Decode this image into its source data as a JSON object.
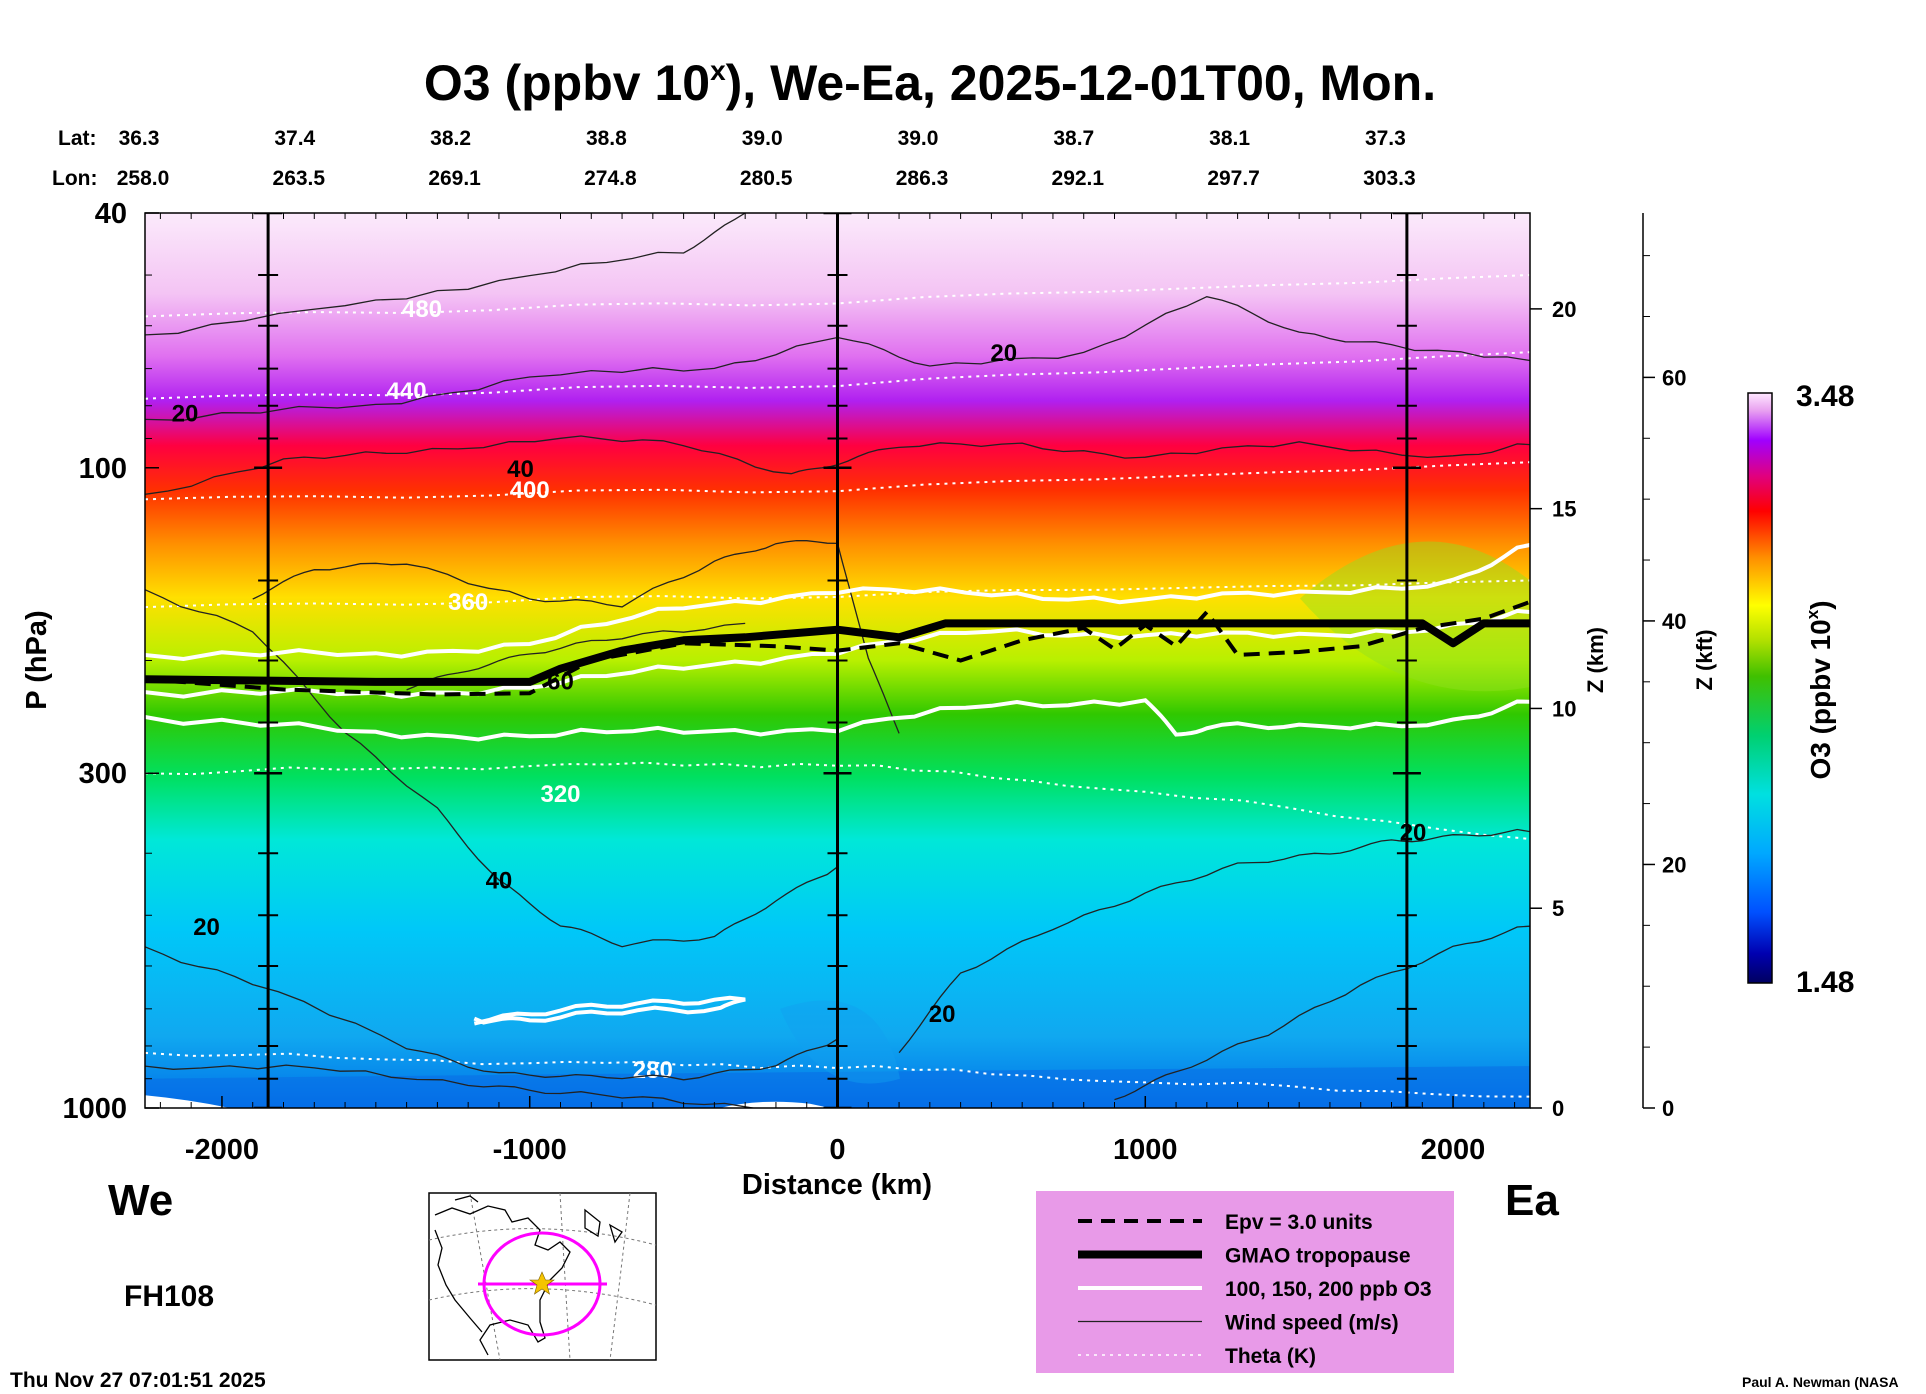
{
  "chart_data": {
    "type": "heatmap",
    "title": "O3 (ppbv 10",
    "title_sup": "x",
    "title_rest": "), We-Ea, 2025-12-01T00, Mon.",
    "xlabel": "Distance (km)",
    "ylabel": "P (hPa)",
    "xlim": [
      -2250,
      2250
    ],
    "ylim": [
      1000,
      40
    ],
    "y_scale": "log",
    "x_ticks": [
      -2000,
      -1000,
      0,
      1000,
      2000
    ],
    "y_ticks": [
      40,
      100,
      300,
      1000
    ],
    "z_km_label": "Z (km)",
    "z_km_ticks": [
      0,
      5,
      10,
      15,
      20
    ],
    "z_kft_label": "Z (kft)",
    "z_kft_ticks": [
      0,
      20,
      40,
      60
    ],
    "cross_section": {
      "lat_label": "Lat:",
      "lon_label": "Lon:",
      "lat": [
        "36.3",
        "37.4",
        "38.2",
        "38.8",
        "39.0",
        "39.0",
        "38.7",
        "38.1",
        "37.3"
      ],
      "lon": [
        "258.0",
        "263.5",
        "269.1",
        "274.8",
        "280.5",
        "286.3",
        "292.1",
        "297.7",
        "303.3"
      ]
    },
    "vertical_markers_km": [
      -1850,
      0,
      1850
    ],
    "colorbar": {
      "label": "O3 (ppbv 10",
      "label_sup": "x",
      "label_end": ")",
      "min": 1.48,
      "max": 3.48,
      "min_label": "1.48",
      "max_label": "3.48"
    },
    "tropopause_pressure_hPa": {
      "x": [
        -2250,
        -1500,
        -1000,
        -900,
        -700,
        -500,
        -300,
        0,
        200,
        350,
        600,
        1000,
        1500,
        1900,
        2000,
        2100,
        2250
      ],
      "p": [
        214,
        216,
        216,
        206,
        193,
        186,
        184,
        179,
        184,
        175,
        175,
        175,
        175,
        175,
        188,
        175,
        175
      ]
    },
    "epv_pressure_hPa": {
      "x": [
        -2250,
        -1800,
        -1300,
        -1000,
        -800,
        -500,
        -200,
        0,
        200,
        400,
        600,
        800,
        900,
        1000,
        1100,
        1200,
        1300,
        1500,
        1700,
        1900,
        2100,
        2250
      ],
      "p": [
        214,
        222,
        226,
        225,
        200,
        188,
        190,
        193,
        188,
        200,
        186,
        178,
        192,
        176,
        190,
        168,
        196,
        194,
        190,
        178,
        172,
        162
      ]
    },
    "ozone_contours_ppb": [
      {
        "level": 200,
        "x": [
          -2250,
          -1500,
          -1000,
          -500,
          0,
          500,
          1000,
          1500,
          2000,
          2250
        ],
        "p": [
          196,
          196,
          188,
          165,
          155,
          158,
          160,
          158,
          150,
          132
        ]
      },
      {
        "level": 150,
        "x": [
          -2250,
          -1500,
          -1000,
          -500,
          0,
          500,
          1000,
          1500,
          2000,
          2250
        ],
        "p": [
          224,
          226,
          220,
          205,
          193,
          180,
          182,
          184,
          176,
          168
        ]
      },
      {
        "level": 100,
        "x": [
          -2250,
          -1500,
          -1000,
          -500,
          0,
          500,
          1000,
          1100,
          1200,
          1500,
          2000,
          2250
        ],
        "p": [
          245,
          260,
          262,
          258,
          255,
          235,
          230,
          262,
          255,
          255,
          248,
          232
        ]
      },
      {
        "level": 100,
        "x": [
          -1180,
          -900,
          -600,
          -300,
          -380,
          -700,
          -1000,
          -1180
        ],
        "p": [
          725,
          705,
          690,
          672,
          700,
          712,
          728,
          725
        ]
      }
    ],
    "theta_contours_K": [
      {
        "level": 480,
        "label": "480",
        "x": [
          -2250,
          0,
          2250
        ],
        "p": [
          58,
          55,
          50
        ]
      },
      {
        "level": 440,
        "label": "440",
        "x": [
          -2250,
          0,
          2250
        ],
        "p": [
          78,
          74,
          66
        ]
      },
      {
        "level": 400,
        "label": "400",
        "x": [
          -2250,
          0,
          2250
        ],
        "p": [
          112,
          108,
          98
        ]
      },
      {
        "level": 360,
        "label": "360",
        "x": [
          -2250,
          0,
          2250
        ],
        "p": [
          165,
          158,
          150
        ]
      },
      {
        "level": 320,
        "label": "320",
        "x": [
          -2250,
          -1000,
          0,
          1000,
          2250
        ],
        "p": [
          300,
          292,
          290,
          320,
          380
        ]
      },
      {
        "level": 280,
        "label": "280",
        "x": [
          -2250,
          -1000,
          0,
          1000,
          2250
        ],
        "p": [
          820,
          850,
          860,
          910,
          960
        ]
      }
    ],
    "wind_labels_ms": [
      {
        "label": "20",
        "x": -2120,
        "p": 82
      },
      {
        "label": "40",
        "x": -1030,
        "p": 100
      },
      {
        "label": "60",
        "x": -900,
        "p": 215
      },
      {
        "label": "40",
        "x": -1100,
        "p": 440
      },
      {
        "label": "20",
        "x": -2050,
        "p": 520
      },
      {
        "label": "20",
        "x": 540,
        "p": 66
      },
      {
        "label": "20",
        "x": 340,
        "p": 710
      },
      {
        "label": "20",
        "x": 1870,
        "p": 370
      }
    ],
    "legend": [
      {
        "style": "epv",
        "label": "Epv = 3.0 units"
      },
      {
        "style": "tropopause",
        "label": "GMAO tropopause"
      },
      {
        "style": "ozone",
        "label": "100, 150, 200 ppb O3"
      },
      {
        "style": "wind",
        "label": "Wind speed (m/s)"
      },
      {
        "style": "theta",
        "label": "Theta (K)"
      }
    ],
    "legend_position": "bottom-right"
  },
  "footer": {
    "west_label": "We",
    "east_label": "Ea",
    "forecast_hour": "FH108",
    "timestamp": "Thu Nov 27 07:01:51 2025",
    "credit": "Paul A. Newman (NASA"
  },
  "colors": {
    "legend_bg": "#e89ae8",
    "track_line": "#ff00ff",
    "star": "#f5c400",
    "contour_white": "#ffffff",
    "contour_black": "#000000"
  }
}
